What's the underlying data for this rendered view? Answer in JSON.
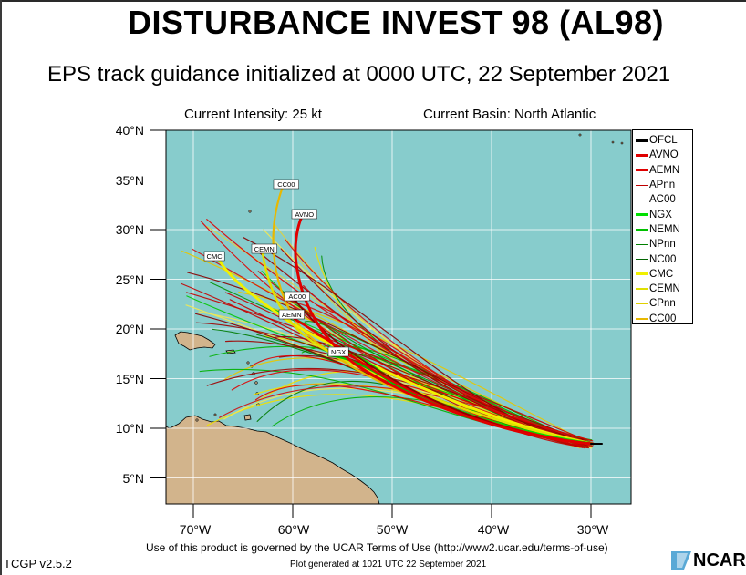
{
  "title": "DISTURBANCE INVEST 98 (AL98)",
  "subtitle": "EPS track guidance initialized at 0000 UTC, 22 September 2021",
  "current_intensity": "Current Intensity: 25 kt",
  "current_basin": "Current Basin: North Atlantic",
  "colors": {
    "ocean": "#87cccc",
    "land": "#d2b48c",
    "grid": "#ffffff"
  },
  "map": {
    "lon_range": [
      -75,
      -27
    ],
    "lat_range": [
      2,
      40
    ],
    "y_ticks": [
      "40°N",
      "35°N",
      "30°N",
      "25°N",
      "20°N",
      "15°N",
      "10°N",
      "5°N"
    ],
    "x_ticks": [
      "70°W",
      "60°W",
      "50°W",
      "40°W",
      "30°W"
    ]
  },
  "legend": [
    {
      "label": "OFCL",
      "color": "#000000",
      "width": 3
    },
    {
      "label": "AVNO",
      "color": "#e00000",
      "width": 3
    },
    {
      "label": "AEMN",
      "color": "#e00000",
      "width": 2
    },
    {
      "label": "APnn",
      "color": "#c00000",
      "width": 1
    },
    {
      "label": "AC00",
      "color": "#8b0000",
      "width": 1.5
    },
    {
      "label": "NGX",
      "color": "#00e000",
      "width": 3
    },
    {
      "label": "NEMN",
      "color": "#00c000",
      "width": 2
    },
    {
      "label": "NPnn",
      "color": "#008000",
      "width": 1
    },
    {
      "label": "NC00",
      "color": "#006400",
      "width": 1.5
    },
    {
      "label": "CMC",
      "color": "#f0f000",
      "width": 3
    },
    {
      "label": "CEMN",
      "color": "#e0e000",
      "width": 2
    },
    {
      "label": "CPnn",
      "color": "#e0d000",
      "width": 1
    },
    {
      "label": "CC00",
      "color": "#e8b800",
      "width": 2
    }
  ],
  "track_labels": [
    "CC00",
    "AVNO",
    "CEMN",
    "CMC",
    "AC00",
    "AEMN",
    "NGX"
  ],
  "footer_terms": "Use of this product is governed by the UCAR Terms of Use (http://www2.ucar.edu/terms-of-use)",
  "footer_generated": "Plot generated at 1021 UTC  22 September 2021",
  "version": "TCGP v2.5.2",
  "logo": "NCAR"
}
